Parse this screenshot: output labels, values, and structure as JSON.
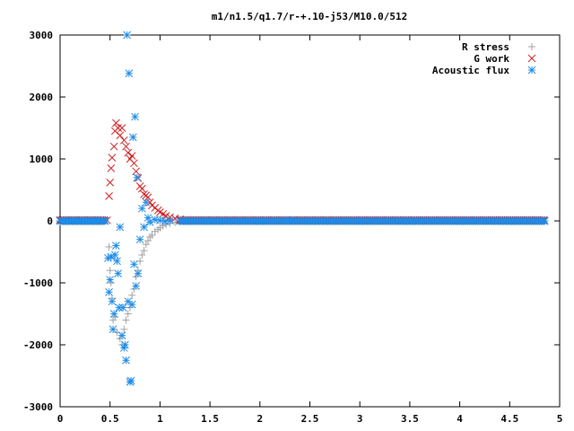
{
  "chart_data": {
    "type": "scatter",
    "title": "m1/n1.5/q1.7/r-+.10-j53/M10.0/512",
    "xlim": [
      0,
      5
    ],
    "ylim": [
      -3000,
      3000
    ],
    "x_ticks": [
      "0",
      "0.5",
      "1",
      "1.5",
      "2",
      "2.5",
      "3",
      "3.5",
      "4",
      "4.5",
      "5"
    ],
    "y_ticks": [
      "3000",
      "2000",
      "1000",
      "0",
      "-1000",
      "-2000",
      "-3000"
    ],
    "legend_position": "top-right",
    "grid": false,
    "series": [
      {
        "name": "R stress",
        "marker": "plus",
        "color": "#a0a0a0",
        "points": [
          [
            0.0,
            0
          ],
          [
            0.05,
            0
          ],
          [
            0.1,
            0
          ],
          [
            0.15,
            0
          ],
          [
            0.2,
            0
          ],
          [
            0.25,
            0
          ],
          [
            0.3,
            0
          ],
          [
            0.35,
            0
          ],
          [
            0.4,
            0
          ],
          [
            0.45,
            0
          ],
          [
            0.49,
            -420
          ],
          [
            0.5,
            -800
          ],
          [
            0.51,
            -1000
          ],
          [
            0.52,
            -1250
          ],
          [
            0.53,
            -1600
          ],
          [
            0.55,
            -1550
          ],
          [
            0.57,
            -1800
          ],
          [
            0.6,
            -1900
          ],
          [
            0.62,
            -2000
          ],
          [
            0.64,
            -1750
          ],
          [
            0.66,
            -1600
          ],
          [
            0.68,
            -1500
          ],
          [
            0.7,
            -1400
          ],
          [
            0.72,
            -1200
          ],
          [
            0.74,
            -1100
          ],
          [
            0.76,
            -900
          ],
          [
            0.78,
            -800
          ],
          [
            0.8,
            -650
          ],
          [
            0.82,
            -550
          ],
          [
            0.84,
            -480
          ],
          [
            0.86,
            -380
          ],
          [
            0.88,
            -320
          ],
          [
            0.9,
            -260
          ],
          [
            0.92,
            -230
          ],
          [
            0.95,
            -170
          ],
          [
            0.98,
            -140
          ],
          [
            1.0,
            -110
          ],
          [
            1.03,
            -80
          ],
          [
            1.06,
            -60
          ],
          [
            1.1,
            -40
          ],
          [
            1.15,
            -25
          ],
          [
            1.2,
            -15
          ],
          [
            1.3,
            -8
          ],
          [
            1.4,
            -5
          ],
          [
            1.6,
            -3
          ],
          [
            1.8,
            -2
          ],
          [
            2.0,
            -2
          ],
          [
            2.5,
            -2
          ],
          [
            3.0,
            -2
          ],
          [
            3.5,
            -2
          ],
          [
            4.0,
            -2
          ],
          [
            4.5,
            -2
          ],
          [
            4.85,
            -2
          ]
        ]
      },
      {
        "name": "G work",
        "marker": "cross",
        "color": "#d02020",
        "points": [
          [
            0.0,
            0
          ],
          [
            0.1,
            0
          ],
          [
            0.2,
            0
          ],
          [
            0.3,
            0
          ],
          [
            0.4,
            0
          ],
          [
            0.47,
            10
          ],
          [
            0.49,
            400
          ],
          [
            0.5,
            620
          ],
          [
            0.51,
            850
          ],
          [
            0.52,
            1020
          ],
          [
            0.54,
            1200
          ],
          [
            0.55,
            1450
          ],
          [
            0.56,
            1580
          ],
          [
            0.58,
            1500
          ],
          [
            0.6,
            1380
          ],
          [
            0.62,
            1500
          ],
          [
            0.64,
            1300
          ],
          [
            0.66,
            1200
          ],
          [
            0.68,
            1100
          ],
          [
            0.7,
            1000
          ],
          [
            0.72,
            1050
          ],
          [
            0.74,
            930
          ],
          [
            0.76,
            800
          ],
          [
            0.78,
            690
          ],
          [
            0.8,
            560
          ],
          [
            0.82,
            520
          ],
          [
            0.84,
            430
          ],
          [
            0.86,
            410
          ],
          [
            0.88,
            380
          ],
          [
            0.9,
            300
          ],
          [
            0.92,
            250
          ],
          [
            0.95,
            210
          ],
          [
            0.98,
            170
          ],
          [
            1.0,
            140
          ],
          [
            1.03,
            110
          ],
          [
            1.06,
            80
          ],
          [
            1.1,
            60
          ],
          [
            1.15,
            40
          ],
          [
            1.2,
            25
          ],
          [
            1.3,
            12
          ],
          [
            1.4,
            6
          ],
          [
            1.6,
            3
          ],
          [
            1.8,
            2
          ],
          [
            2.0,
            2
          ],
          [
            2.5,
            2
          ],
          [
            3.0,
            2
          ],
          [
            3.5,
            2
          ],
          [
            4.0,
            2
          ],
          [
            4.5,
            2
          ],
          [
            4.85,
            2
          ]
        ]
      },
      {
        "name": "Acoustic flux",
        "marker": "star",
        "color": "#1e8ce6",
        "points": [
          [
            0.0,
            0
          ],
          [
            0.05,
            0
          ],
          [
            0.1,
            0
          ],
          [
            0.15,
            0
          ],
          [
            0.2,
            0
          ],
          [
            0.25,
            0
          ],
          [
            0.3,
            0
          ],
          [
            0.35,
            0
          ],
          [
            0.4,
            0
          ],
          [
            0.45,
            0
          ],
          [
            0.48,
            -600
          ],
          [
            0.49,
            -1150
          ],
          [
            0.5,
            -950
          ],
          [
            0.51,
            -580
          ],
          [
            0.52,
            -1300
          ],
          [
            0.53,
            -1750
          ],
          [
            0.54,
            -1500
          ],
          [
            0.55,
            -550
          ],
          [
            0.56,
            -400
          ],
          [
            0.57,
            -650
          ],
          [
            0.58,
            -850
          ],
          [
            0.59,
            -1400
          ],
          [
            0.6,
            -100
          ],
          [
            0.62,
            -1850
          ],
          [
            0.63,
            -1400
          ],
          [
            0.64,
            -2050
          ],
          [
            0.65,
            -2000
          ],
          [
            0.66,
            -2250
          ],
          [
            0.67,
            3000
          ],
          [
            0.68,
            -1300
          ],
          [
            0.69,
            2380
          ],
          [
            0.7,
            -2600
          ],
          [
            0.71,
            -2580
          ],
          [
            0.72,
            -1350
          ],
          [
            0.73,
            1350
          ],
          [
            0.74,
            -700
          ],
          [
            0.75,
            1680
          ],
          [
            0.76,
            -1050
          ],
          [
            0.77,
            700
          ],
          [
            0.78,
            -850
          ],
          [
            0.8,
            -300
          ],
          [
            0.82,
            200
          ],
          [
            0.84,
            -100
          ],
          [
            0.86,
            300
          ],
          [
            0.88,
            50
          ],
          [
            0.9,
            -20
          ],
          [
            0.95,
            20
          ],
          [
            1.0,
            10
          ],
          [
            1.05,
            -5
          ],
          [
            1.1,
            5
          ],
          [
            1.2,
            0
          ],
          [
            1.5,
            0
          ],
          [
            2.0,
            0
          ],
          [
            2.3,
            10
          ],
          [
            2.5,
            0
          ],
          [
            3.0,
            0
          ],
          [
            3.5,
            0
          ],
          [
            4.0,
            0
          ],
          [
            4.5,
            0
          ],
          [
            4.8,
            0
          ],
          [
            4.85,
            0
          ]
        ]
      }
    ]
  }
}
